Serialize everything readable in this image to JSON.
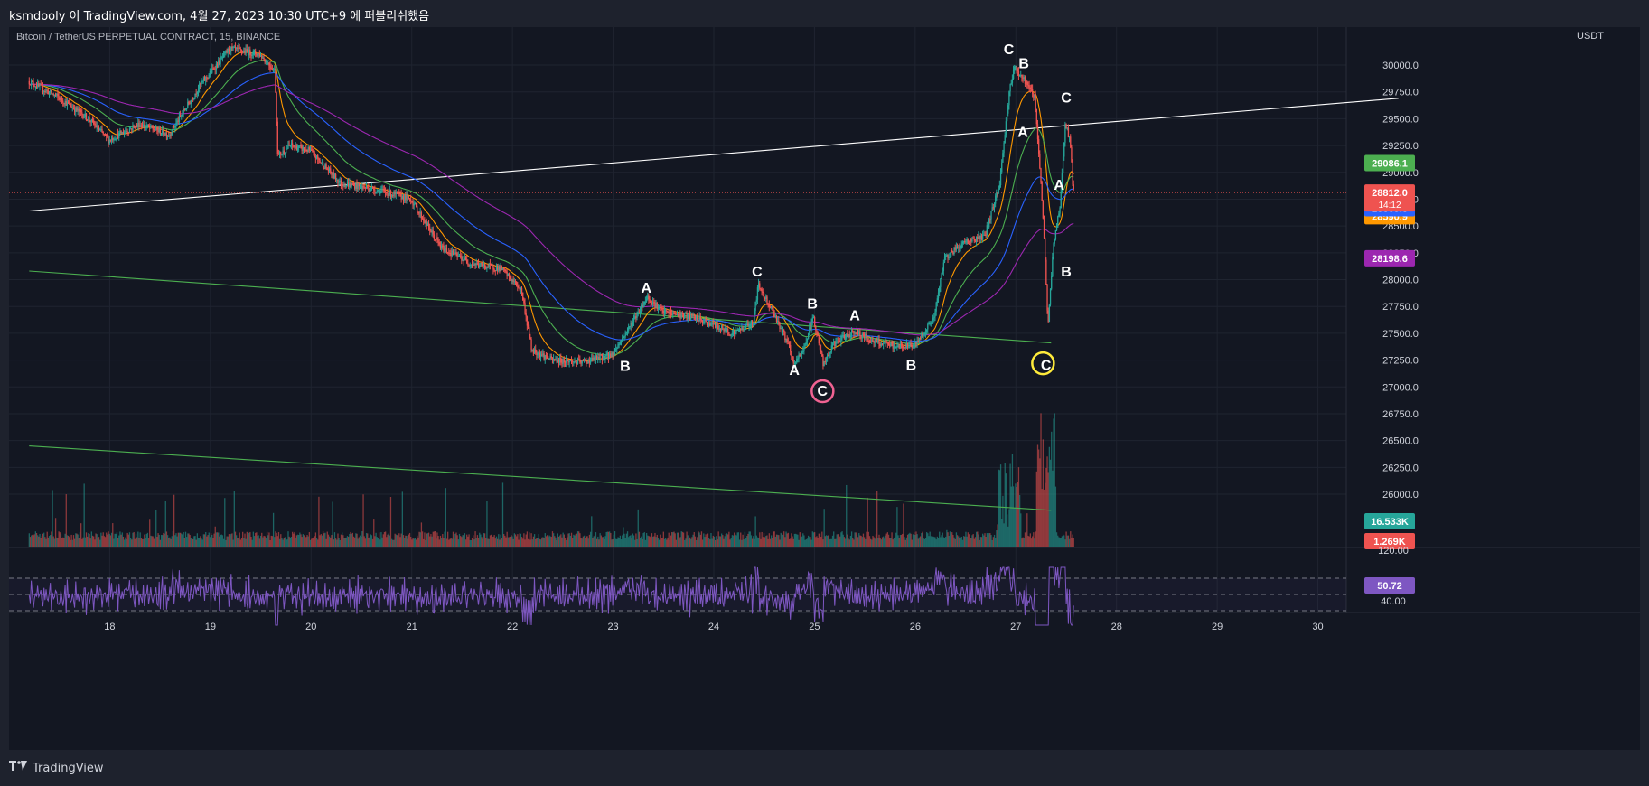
{
  "header": {
    "publisher_line": "ksmdooly 이 TradingView.com, 4월 27, 2023 10:30 UTC+9 에 퍼블리쉬했음"
  },
  "footer": {
    "brand": "TradingView",
    "logo_icon": "tradingview-logo-icon"
  },
  "colors": {
    "up": "#26a69a",
    "down": "#ef5350",
    "background": "#131722",
    "grid": "#1f2430",
    "ema_orange": "#ff9800",
    "ema_green": "#4caf50",
    "ema_blue": "#2962ff",
    "ema_purple": "#9c27b0",
    "rsi": "#7e57c2",
    "trend_white": "#ffffff",
    "trend_green": "#4caf50",
    "circle_pink": "#f06292",
    "circle_yellow": "#ffeb3b"
  },
  "chart_data": {
    "type": "candlestick",
    "symbol_label": "Bitcoin / TetherUS PERPETUAL CONTRACT, 15, BINANCE",
    "currency": "USDT",
    "x_axis": {
      "ticks": [
        "18",
        "19",
        "20",
        "21",
        "22",
        "23",
        "24",
        "25",
        "26",
        "27",
        "28",
        "29",
        "30"
      ],
      "unit": "day"
    },
    "y_axis": {
      "range": [
        25800,
        30200
      ],
      "ticks": [
        "30000.0",
        "29750.0",
        "29500.0",
        "29250.0",
        "29000.0",
        "28750.0",
        "28500.0",
        "28250.0",
        "28000.0",
        "27750.0",
        "27500.0",
        "27250.0",
        "27000.0",
        "26750.0",
        "26500.0",
        "26250.0",
        "26000.0"
      ]
    },
    "price_path": [
      [
        17.2,
        29850
      ],
      [
        17.5,
        29700
      ],
      [
        17.8,
        29500
      ],
      [
        18.0,
        29300
      ],
      [
        18.3,
        29450
      ],
      [
        18.6,
        29350
      ],
      [
        18.9,
        29800
      ],
      [
        19.2,
        30150
      ],
      [
        19.5,
        30100
      ],
      [
        19.65,
        29950
      ],
      [
        19.68,
        29150
      ],
      [
        19.8,
        29250
      ],
      [
        20.0,
        29200
      ],
      [
        20.3,
        28900
      ],
      [
        20.6,
        28850
      ],
      [
        21.0,
        28750
      ],
      [
        21.3,
        28300
      ],
      [
        21.6,
        28150
      ],
      [
        21.9,
        28100
      ],
      [
        22.1,
        27900
      ],
      [
        22.2,
        27350
      ],
      [
        22.4,
        27250
      ],
      [
        22.7,
        27230
      ],
      [
        23.0,
        27300
      ],
      [
        23.2,
        27600
      ],
      [
        23.35,
        27840
      ],
      [
        23.5,
        27700
      ],
      [
        23.8,
        27650
      ],
      [
        24.0,
        27580
      ],
      [
        24.2,
        27500
      ],
      [
        24.4,
        27600
      ],
      [
        24.45,
        27950
      ],
      [
        24.6,
        27700
      ],
      [
        24.75,
        27400
      ],
      [
        24.8,
        27200
      ],
      [
        24.9,
        27350
      ],
      [
        25.0,
        27650
      ],
      [
        25.1,
        27200
      ],
      [
        25.2,
        27400
      ],
      [
        25.4,
        27520
      ],
      [
        25.6,
        27420
      ],
      [
        25.8,
        27380
      ],
      [
        26.0,
        27380
      ],
      [
        26.2,
        27650
      ],
      [
        26.3,
        28200
      ],
      [
        26.5,
        28350
      ],
      [
        26.7,
        28400
      ],
      [
        26.85,
        28900
      ],
      [
        26.95,
        29800
      ],
      [
        27.0,
        29980
      ],
      [
        27.1,
        29850
      ],
      [
        27.2,
        29700
      ],
      [
        27.28,
        28600
      ],
      [
        27.33,
        27550
      ],
      [
        27.38,
        28300
      ],
      [
        27.45,
        28700
      ],
      [
        27.5,
        29450
      ],
      [
        27.55,
        29300
      ],
      [
        27.58,
        28812
      ]
    ],
    "moving_averages": [
      {
        "color": "ema_orange",
        "last_value": "28590.9"
      },
      {
        "color": "ema_green",
        "last_value": "29086.1"
      },
      {
        "color": "ema_blue",
        "last_value": "28665.3"
      },
      {
        "color": "ema_purple",
        "last_value": "28198.6"
      }
    ],
    "last_price": {
      "value": "28812.0",
      "countdown": "14:12"
    },
    "volume": {
      "labels": [
        "16.533K",
        "1.269K"
      ]
    },
    "rsi": {
      "last_value": "50.72",
      "levels": [
        "120.00",
        "40.00"
      ]
    },
    "wave_labels": [
      {
        "text": "A",
        "x": 23.33,
        "y": 27880
      },
      {
        "text": "B",
        "x": 23.12,
        "y": 27150
      },
      {
        "text": "C",
        "x": 24.43,
        "y": 28030
      },
      {
        "text": "B",
        "x": 24.98,
        "y": 27730
      },
      {
        "text": "A",
        "x": 24.8,
        "y": 27110
      },
      {
        "text": "A",
        "x": 25.4,
        "y": 27620
      },
      {
        "text": "C",
        "x": 25.08,
        "y": 26920
      },
      {
        "text": "B",
        "x": 25.96,
        "y": 27160
      },
      {
        "text": "C",
        "x": 26.93,
        "y": 30100
      },
      {
        "text": "B",
        "x": 27.08,
        "y": 29970
      },
      {
        "text": "A",
        "x": 27.07,
        "y": 29330
      },
      {
        "text": "C",
        "x": 27.5,
        "y": 29650
      },
      {
        "text": "A",
        "x": 27.43,
        "y": 28840
      },
      {
        "text": "B",
        "x": 27.5,
        "y": 28030
      },
      {
        "text": "C",
        "x": 27.3,
        "y": 27160
      }
    ],
    "circles": [
      {
        "x": 25.08,
        "y": 26960,
        "color": "circle_pink"
      },
      {
        "x": 27.27,
        "y": 27220,
        "color": "circle_yellow"
      }
    ],
    "trend_lines": [
      {
        "color": "trend_white",
        "from": [
          17.2,
          28640
        ],
        "to": [
          30.8,
          29690
        ]
      },
      {
        "color": "trend_green",
        "from": [
          17.2,
          28080
        ],
        "to": [
          27.35,
          27410
        ]
      },
      {
        "color": "trend_green",
        "from": [
          17.2,
          26450
        ],
        "to": [
          27.35,
          25850
        ]
      }
    ],
    "grid": true,
    "legend": "top-left"
  }
}
